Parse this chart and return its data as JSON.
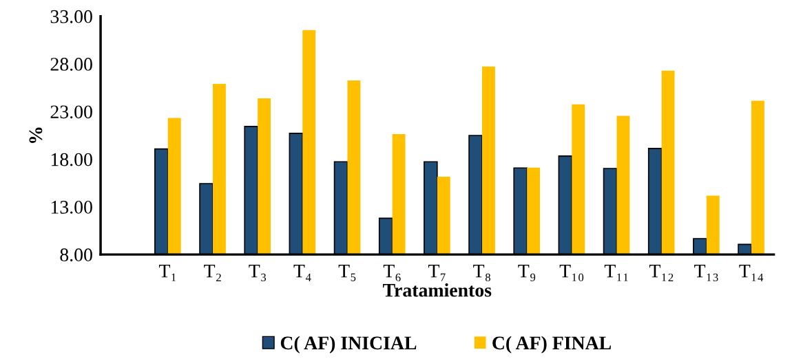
{
  "chart_data": {
    "type": "bar",
    "categories": [
      null,
      "T₁",
      "T₂",
      "T₃",
      "T₄",
      "T₅",
      "T₆",
      "T₇",
      "T₈",
      "T₉",
      "T₁₀",
      "T₁₁",
      "T₁₂",
      "T₁₃",
      "T₁₄"
    ],
    "xlabel": "Tratamientos",
    "ylabel": "%",
    "series": [
      {
        "name": "C( AF) INICIAL",
        "color": "#1f4e79",
        "values": [
          null,
          19.08,
          15.44,
          21.44,
          20.72,
          17.73,
          11.8,
          17.73,
          20.49,
          17.08,
          18.33,
          17.03,
          19.13,
          9.67,
          9.06
        ]
      },
      {
        "name": "C( AF) FINAL",
        "color": "#ffc000",
        "values": [
          null,
          22.33,
          25.9,
          24.38,
          31.55,
          26.26,
          20.64,
          16.16,
          27.72,
          17.12,
          23.75,
          22.54,
          27.29,
          14.17,
          24.14
        ]
      }
    ],
    "ylim": [
      8,
      33
    ],
    "yticks": [
      {
        "value": 8,
        "label": "8.00"
      },
      {
        "value": 13,
        "label": "13.00"
      },
      {
        "value": 18,
        "label": "18.00"
      },
      {
        "value": 23,
        "label": "23.00"
      },
      {
        "value": 28,
        "label": "28.00"
      },
      {
        "value": 33,
        "label": "33.00"
      }
    ],
    "grid": false,
    "legend": "bottom"
  }
}
